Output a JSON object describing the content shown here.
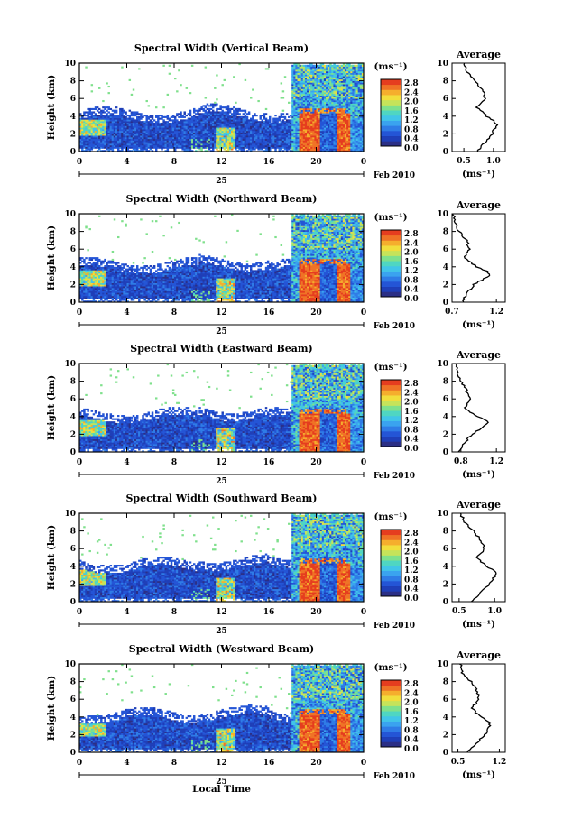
{
  "colors": {
    "scale": [
      "#2b2f86",
      "#1f3fb8",
      "#2455d6",
      "#2f7ce6",
      "#3aa3ef",
      "#41c5e8",
      "#4fd6c2",
      "#7fe08c",
      "#c6e35a",
      "#f1de3c",
      "#f5ae2d",
      "#ef7326",
      "#e53d1f"
    ],
    "na": "#ffffff"
  },
  "colorbar": {
    "unit": "(ms⁻¹)",
    "ticks": [
      "2.8",
      "2.4",
      "2.0",
      "1.6",
      "1.2",
      "0.8",
      "0.4",
      "0.0"
    ]
  },
  "shared": {
    "ylabel": "Height (km)",
    "yticks": [
      "0",
      "2",
      "4",
      "6",
      "8",
      "10"
    ],
    "xticks": [
      "0",
      "4",
      "8",
      "12",
      "16",
      "20",
      "0"
    ],
    "day": "25",
    "date": "Feb 2010",
    "xlabel": "Local Time",
    "avg_title": "Average",
    "avg_xlabel": "(ms⁻¹)"
  },
  "chart_data": [
    {
      "type": "heatmap",
      "title": "Spectral Width (Vertical Beam)",
      "xlim": [
        0,
        24
      ],
      "ylim": [
        0,
        10
      ],
      "zlim": [
        0,
        2.8
      ],
      "profile": {
        "type": "line",
        "xlim": [
          0.3,
          1.2
        ],
        "xticks": [
          "0.5",
          "1.0"
        ],
        "height": [
          0,
          1,
          2,
          3,
          3.5,
          4,
          5,
          6,
          7,
          8,
          9,
          10
        ],
        "width": [
          0.72,
          0.85,
          0.98,
          1.05,
          1.02,
          0.88,
          0.72,
          0.85,
          0.82,
          0.68,
          0.55,
          0.5
        ]
      }
    },
    {
      "type": "heatmap",
      "title": "Spectral Width (Northward Beam)",
      "xlim": [
        0,
        24
      ],
      "ylim": [
        0,
        10
      ],
      "zlim": [
        0,
        2.8
      ],
      "profile": {
        "type": "line",
        "xlim": [
          0.7,
          1.3
        ],
        "xticks": [
          "0.7",
          "1.2"
        ],
        "height": [
          0,
          1,
          2,
          3,
          3.5,
          4,
          5,
          6,
          7,
          8,
          9,
          10
        ],
        "width": [
          0.82,
          0.86,
          0.95,
          1.12,
          1.1,
          0.98,
          0.84,
          0.9,
          0.86,
          0.78,
          0.74,
          0.72
        ]
      }
    },
    {
      "type": "heatmap",
      "title": "Spectral Width (Eastward Beam)",
      "xlim": [
        0,
        24
      ],
      "ylim": [
        0,
        10
      ],
      "zlim": [
        0,
        2.8
      ],
      "profile": {
        "type": "line",
        "xlim": [
          0.7,
          1.3
        ],
        "xticks": [
          "0.8",
          "1.2"
        ],
        "height": [
          0,
          1,
          2,
          3,
          3.5,
          4,
          5,
          6,
          7,
          8,
          9,
          10
        ],
        "width": [
          0.78,
          0.84,
          0.92,
          1.08,
          1.1,
          0.98,
          0.84,
          0.9,
          0.86,
          0.8,
          0.76,
          0.74
        ]
      }
    },
    {
      "type": "heatmap",
      "title": "Spectral Width (Southward Beam)",
      "xlim": [
        0,
        24
      ],
      "ylim": [
        0,
        10
      ],
      "zlim": [
        0,
        2.8
      ],
      "profile": {
        "type": "line",
        "xlim": [
          0.4,
          1.15
        ],
        "xticks": [
          "0.5",
          "1.0"
        ],
        "height": [
          0,
          1,
          2,
          3,
          3.5,
          4,
          5,
          6,
          7,
          8,
          9,
          10
        ],
        "width": [
          0.68,
          0.8,
          0.92,
          1.02,
          1.0,
          0.88,
          0.74,
          0.86,
          0.8,
          0.7,
          0.58,
          0.52
        ]
      }
    },
    {
      "type": "heatmap",
      "title": "Spectral Width (Westward Beam)",
      "xlim": [
        0,
        24
      ],
      "ylim": [
        0,
        10
      ],
      "zlim": [
        0,
        2.8
      ],
      "profile": {
        "type": "line",
        "xlim": [
          0.4,
          1.3
        ],
        "xticks": [
          "0.5",
          "1.2"
        ],
        "height": [
          0,
          1,
          2,
          3,
          3.5,
          4,
          5,
          6,
          7,
          8,
          9,
          10
        ],
        "width": [
          0.66,
          0.82,
          0.95,
          1.05,
          1.02,
          0.88,
          0.74,
          0.86,
          0.82,
          0.72,
          0.58,
          0.54
        ]
      }
    }
  ]
}
